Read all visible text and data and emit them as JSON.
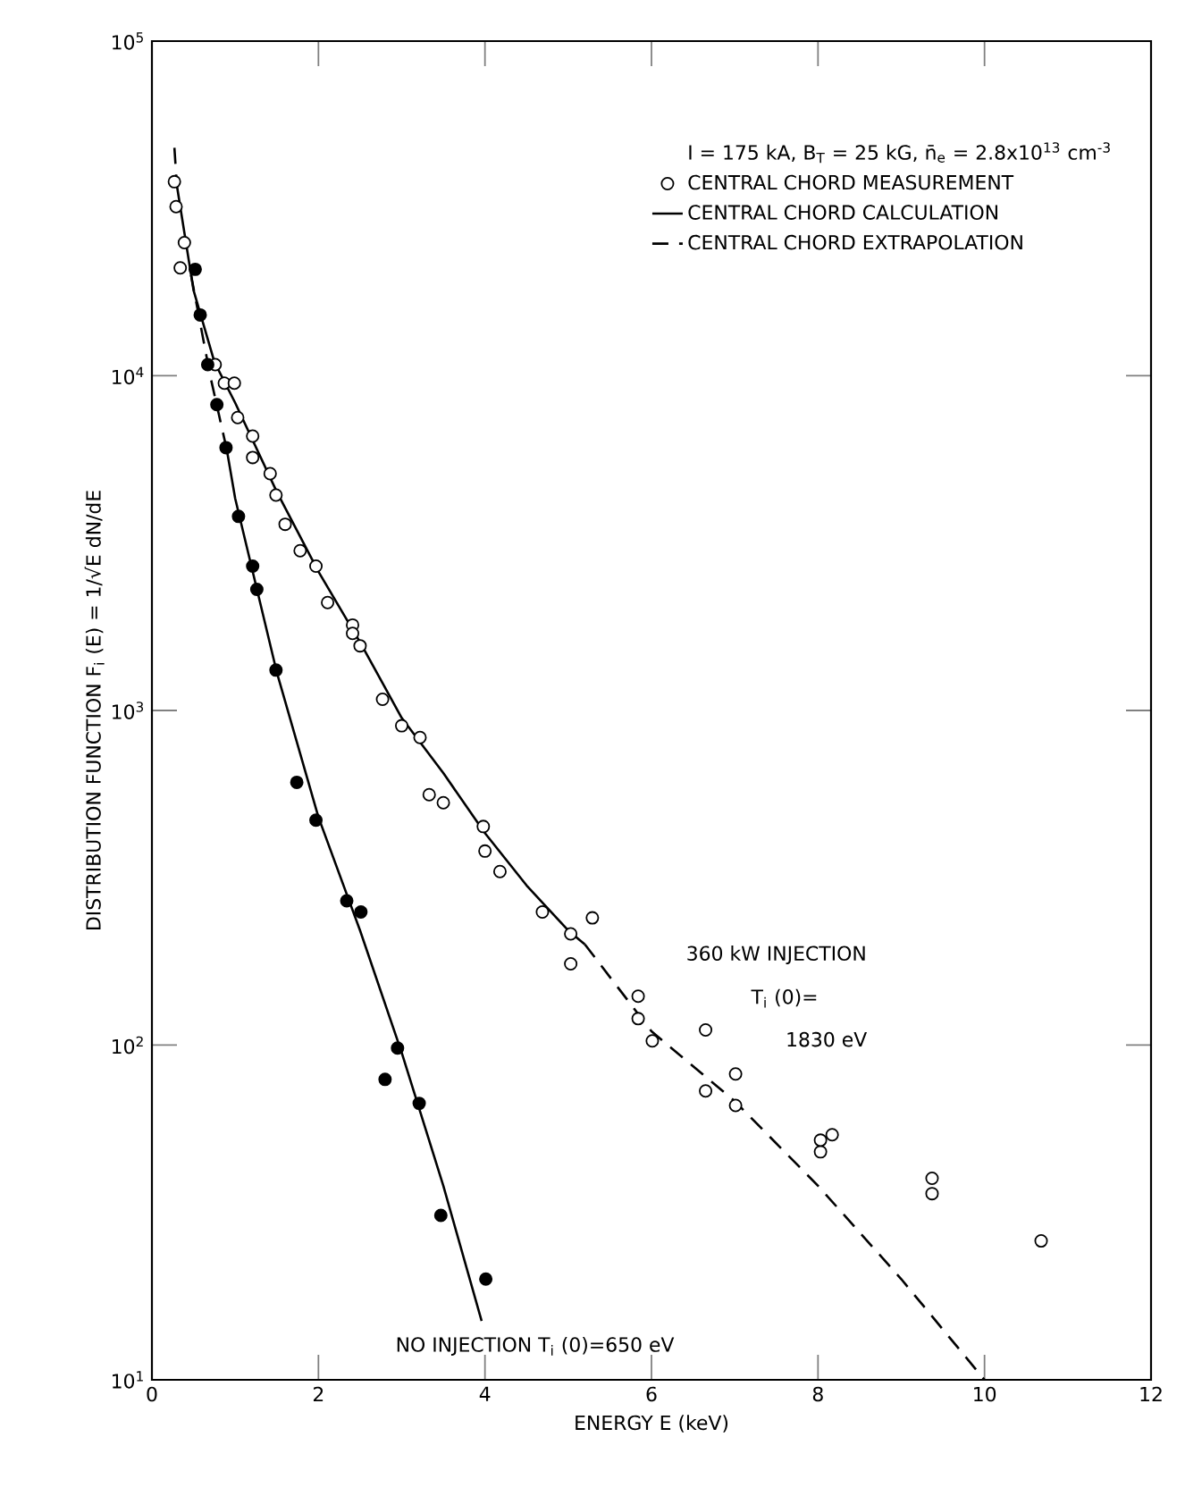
{
  "chart_data": {
    "type": "scatter",
    "xlabel": "ENERGY E (keV)",
    "ylabel": "DISTRIBUTION FUNCTION F$_{i}$ (E) = 1/√E  dN/dE",
    "legend_title": "I = 175 kA, B$_{T}$ = 25 kG, n̄$_{e}$ = 2.8x10$^{13}$ cm$^{-3}$",
    "log": "y",
    "legend": "top right",
    "xlim": [
      0,
      12
    ],
    "xticks": [
      0,
      2,
      4,
      6,
      8,
      10,
      12
    ],
    "ylim": [
      10,
      100000
    ],
    "yticks": [
      {
        "value": 10,
        "label": "10$^{1}$"
      },
      {
        "value": 100,
        "label": "10$^{2}$"
      },
      {
        "value": 1000,
        "label": "10$^{3}$"
      },
      {
        "value": 10000,
        "label": "10$^{4}$"
      },
      {
        "value": 100000,
        "label": "10$^{5}$"
      }
    ],
    "series": [
      {
        "name": "CENTRAL CHORD MEASUREMENT",
        "marker": "circle",
        "color": "#ffffff",
        "x": [
          0.27,
          0.29,
          0.39,
          0.34,
          0.76,
          0.87,
          0.99,
          1.03,
          1.21,
          1.21,
          1.42,
          1.49,
          1.6,
          1.78,
          1.97,
          2.11,
          2.41,
          2.41,
          2.5,
          2.77,
          3.0,
          3.22,
          3.33,
          3.5,
          3.98,
          4.0,
          4.18,
          4.69,
          5.03,
          5.29,
          5.03,
          5.84,
          5.84,
          6.01,
          6.65,
          6.65,
          7.01,
          7.01,
          8.03,
          8.03,
          8.17,
          9.37,
          9.37,
          10.68
        ],
        "values": [
          38000,
          32000,
          25000,
          21000,
          10800,
          9500,
          9500,
          7500,
          6600,
          5700,
          5100,
          4400,
          3600,
          3000,
          2700,
          2100,
          1800,
          1700,
          1560,
          1080,
          900,
          830,
          560,
          530,
          450,
          380,
          330,
          250,
          215,
          240,
          175,
          140,
          120,
          103,
          111,
          73,
          82,
          66,
          48,
          52,
          54,
          40,
          36,
          26
        ]
      },
      {
        "marker": "circle",
        "color": "#000000",
        "x": [
          0.52,
          0.58,
          0.67,
          0.78,
          0.89,
          1.04,
          1.21,
          1.26,
          1.49,
          1.74,
          1.97,
          2.34,
          2.51,
          2.95,
          2.8,
          3.21,
          3.47,
          4.01
        ],
        "values": [
          20800,
          15200,
          10800,
          8200,
          6100,
          3800,
          2700,
          2300,
          1320,
          610,
          470,
          270,
          250,
          98,
          79,
          67,
          31,
          20
        ]
      },
      {
        "name": "CENTRAL CHORD CALCULATION",
        "type": "line",
        "marker": "none",
        "line_style": "solid",
        "color": "#000000",
        "x": [
          0.3,
          0.5,
          0.75,
          1.0,
          1.5,
          2.0,
          2.5,
          3.0,
          3.5,
          4.0,
          4.5,
          5.0,
          5.2
        ],
        "values": [
          37000,
          18000,
          11000,
          8300,
          4500,
          2600,
          1600,
          950,
          650,
          430,
          300,
          220,
          200
        ]
      },
      {
        "type": "line",
        "marker": "none",
        "line_style": "solid",
        "color": "#000000",
        "x": [
          0.9,
          1.0,
          1.5,
          2.0,
          2.5,
          3.0,
          3.5,
          3.96
        ],
        "values": [
          6000,
          4300,
          1300,
          480,
          220,
          95,
          38,
          15
        ]
      },
      {
        "name": "CENTRAL CHORD EXTRAPOLATION",
        "type": "line",
        "marker": "none",
        "line_style": "dashed",
        "color": "#000000",
        "x": [
          5.2,
          6.0,
          7.0,
          8.0,
          9.0,
          10.0
        ],
        "values": [
          200,
          110,
          68,
          38,
          20,
          10
        ]
      },
      {
        "type": "line",
        "marker": "none",
        "line_style": "dashed",
        "color": "#000000",
        "x": [
          0.27,
          0.3
        ],
        "values": [
          48000,
          37000
        ]
      },
      {
        "type": "line",
        "marker": "none",
        "line_style": "dashed",
        "color": "#000000",
        "x": [
          0.47,
          0.7,
          0.9
        ],
        "values": [
          20000,
          10000,
          6000
        ]
      }
    ],
    "annotations": [
      "360 kW INJECTION",
      "T$_{i}$ (0)=",
      "1830 eV",
      "NO INJECTION  T$_{i}$ (0)=650 eV"
    ]
  }
}
